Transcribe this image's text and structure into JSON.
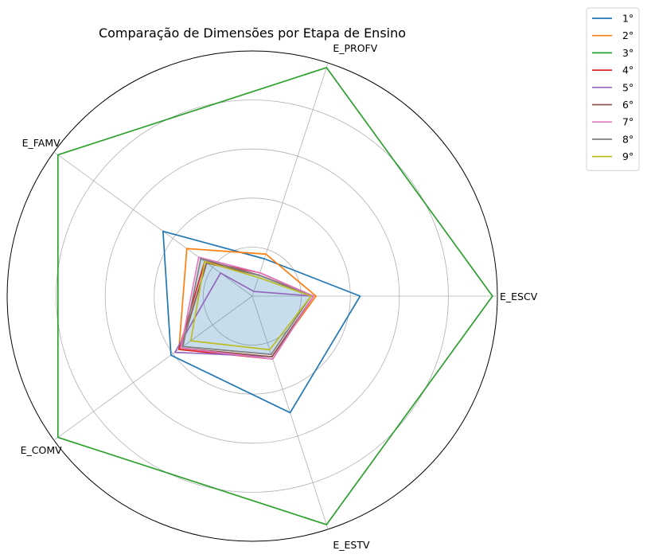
{
  "chart_data": {
    "type": "radar",
    "title": "Comparação de Dimensões por Etapa de Ensino",
    "axes": [
      "E_ESCV",
      "E_PROFV",
      "E_FAMV",
      "E_COMV",
      "E_ESTV"
    ],
    "rmax": 1.0,
    "rings": [
      0.2,
      0.4,
      0.6,
      0.8,
      1.0
    ],
    "grid": true,
    "legend_position": "top-right",
    "series": [
      {
        "name": "1°",
        "color": "#1f77b4",
        "values": [
          0.44,
          0.16,
          0.45,
          0.41,
          0.5
        ]
      },
      {
        "name": "2°",
        "color": "#ff7f0e",
        "values": [
          0.26,
          0.18,
          0.33,
          0.37,
          0.26
        ]
      },
      {
        "name": "3°",
        "color": "#2ca02c",
        "values": [
          0.98,
          0.98,
          0.98,
          0.98,
          0.98
        ]
      },
      {
        "name": "4°",
        "color": "#d62728",
        "values": [
          0.25,
          0.1,
          0.24,
          0.37,
          0.27
        ]
      },
      {
        "name": "5°",
        "color": "#9467bd",
        "values": [
          0.25,
          0.02,
          0.16,
          0.39,
          0.26
        ]
      },
      {
        "name": "6°",
        "color": "#8c564b",
        "values": [
          0.25,
          0.09,
          0.23,
          0.36,
          0.26
        ]
      },
      {
        "name": "7°",
        "color": "#e377c2",
        "values": [
          0.25,
          0.1,
          0.27,
          0.36,
          0.27
        ]
      },
      {
        "name": "8°",
        "color": "#7f7f7f",
        "values": [
          0.24,
          0.09,
          0.26,
          0.35,
          0.25
        ]
      },
      {
        "name": "9°",
        "color": "#bcbd22",
        "values": [
          0.24,
          0.08,
          0.24,
          0.31,
          0.23
        ]
      }
    ],
    "fill_series": "8°",
    "fill_color": "#1f77b4"
  }
}
